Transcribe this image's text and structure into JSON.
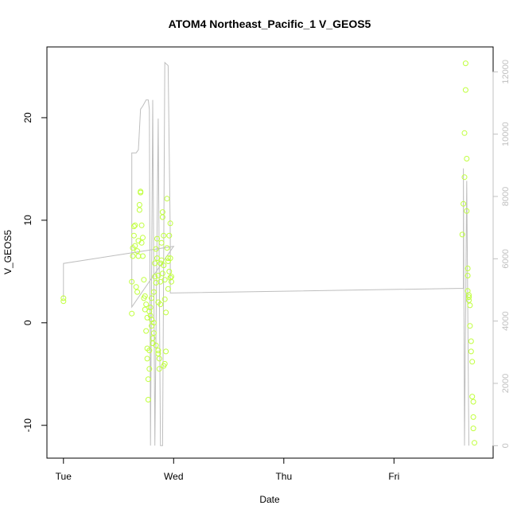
{
  "chart_data": {
    "type": "scatter",
    "title": "ATOM4 Northeast_Pacific_1 V_GEOS5",
    "xlabel": "Date",
    "ylabel": "V_GEOS5",
    "x_ticks": [
      {
        "label": "Tue",
        "value": 0
      },
      {
        "label": "Wed",
        "value": 1
      },
      {
        "label": "Thu",
        "value": 2
      },
      {
        "label": "Fri",
        "value": 3
      }
    ],
    "xlim": [
      -0.15,
      3.9
    ],
    "ylim": [
      -13.2,
      26.9
    ],
    "y_ticks": [
      -10,
      0,
      10,
      20
    ],
    "y2_ticks": [
      0,
      2000,
      4000,
      6000,
      8000,
      10000,
      12000
    ],
    "y2lim": [
      -400,
      12800
    ],
    "grid": false,
    "colors": {
      "points": "#c0ff3e",
      "line": "#bebebe",
      "axis": "#000000",
      "right_axis": "#c0c0c0"
    },
    "series": [
      {
        "values": [
          [
            0.0,
            2.4
          ],
          [
            0.0,
            2.1
          ],
          [
            0.62,
            0.9
          ],
          [
            0.62,
            4.0
          ],
          [
            0.63,
            6.5
          ],
          [
            0.63,
            7.3
          ],
          [
            0.64,
            8.5
          ],
          [
            0.64,
            9.4
          ],
          [
            0.65,
            9.5
          ],
          [
            0.65,
            7.5
          ],
          [
            0.66,
            3.5
          ],
          [
            0.67,
            3.0
          ],
          [
            0.67,
            7.0
          ],
          [
            0.68,
            6.5
          ],
          [
            0.68,
            8.0
          ],
          [
            0.69,
            11.5
          ],
          [
            0.69,
            11.0
          ],
          [
            0.7,
            12.8
          ],
          [
            0.7,
            12.7
          ],
          [
            0.71,
            9.5
          ],
          [
            0.71,
            7.8
          ],
          [
            0.72,
            6.5
          ],
          [
            0.72,
            8.3
          ],
          [
            0.73,
            4.2
          ],
          [
            0.73,
            2.4
          ],
          [
            0.74,
            2.6
          ],
          [
            0.75,
            1.8
          ],
          [
            0.75,
            -0.8
          ],
          [
            0.76,
            -2.5
          ],
          [
            0.76,
            -3.5
          ],
          [
            0.77,
            -5.5
          ],
          [
            0.77,
            -7.5
          ],
          [
            0.78,
            -4.5
          ],
          [
            0.78,
            -2.7
          ],
          [
            0.79,
            0.7
          ],
          [
            0.79,
            1.5
          ],
          [
            0.8,
            2.4
          ],
          [
            0.8,
            -0.3
          ],
          [
            0.81,
            -1.5
          ],
          [
            0.81,
            -2.0
          ],
          [
            0.82,
            0.0
          ],
          [
            0.82,
            3.0
          ],
          [
            0.83,
            5.8
          ],
          [
            0.83,
            4.5
          ],
          [
            0.84,
            3.9
          ],
          [
            0.84,
            7.2
          ],
          [
            0.85,
            8.2
          ],
          [
            0.85,
            6.3
          ],
          [
            0.86,
            2.0
          ],
          [
            0.86,
            -3.0
          ],
          [
            0.87,
            -4.5
          ],
          [
            0.87,
            -3.5
          ],
          [
            0.88,
            1.8
          ],
          [
            0.88,
            4.0
          ],
          [
            0.89,
            6.1
          ],
          [
            0.89,
            7.8
          ],
          [
            0.9,
            10.8
          ],
          [
            0.9,
            10.3
          ],
          [
            0.91,
            8.5
          ],
          [
            0.91,
            5.6
          ],
          [
            0.92,
            4.2
          ],
          [
            0.92,
            2.3
          ],
          [
            0.93,
            1.0
          ],
          [
            0.93,
            -2.8
          ],
          [
            0.94,
            12.1
          ],
          [
            0.94,
            7.3
          ],
          [
            0.95,
            6.3
          ],
          [
            0.95,
            6.0
          ],
          [
            0.96,
            5.0
          ],
          [
            0.96,
            8.5
          ],
          [
            0.97,
            9.7
          ],
          [
            0.97,
            6.3
          ],
          [
            0.98,
            4.5
          ],
          [
            0.98,
            4.0
          ],
          [
            0.92,
            -4.0
          ],
          [
            0.91,
            -4.2
          ],
          [
            0.86,
            -2.7
          ],
          [
            0.84,
            -2.2
          ],
          [
            0.82,
            -1.0
          ],
          [
            0.8,
            0.3
          ],
          [
            0.78,
            1.1
          ],
          [
            0.76,
            0.5
          ],
          [
            0.9,
            4.8
          ],
          [
            0.88,
            5.8
          ],
          [
            0.95,
            3.3
          ],
          [
            0.97,
            4.4
          ],
          [
            0.86,
            4.6
          ],
          [
            0.74,
            1.3
          ],
          [
            3.62,
            8.6
          ],
          [
            3.63,
            11.6
          ],
          [
            3.64,
            14.2
          ],
          [
            3.64,
            18.5
          ],
          [
            3.65,
            22.7
          ],
          [
            3.65,
            25.3
          ],
          [
            3.66,
            16.0
          ],
          [
            3.66,
            10.9
          ],
          [
            3.67,
            5.3
          ],
          [
            3.67,
            4.6
          ],
          [
            3.67,
            3.1
          ],
          [
            3.68,
            2.7
          ],
          [
            3.68,
            2.5
          ],
          [
            3.68,
            2.2
          ],
          [
            3.69,
            1.7
          ],
          [
            3.69,
            -0.3
          ],
          [
            3.7,
            -1.8
          ],
          [
            3.7,
            -2.8
          ],
          [
            3.71,
            -3.8
          ],
          [
            3.71,
            -7.2
          ],
          [
            3.72,
            -7.7
          ],
          [
            3.72,
            -9.2
          ],
          [
            3.72,
            -10.3
          ],
          [
            3.73,
            -11.7
          ]
        ]
      },
      {
        "axis": "right",
        "values": [
          [
            0.0,
            4750
          ],
          [
            0.0,
            5850
          ],
          [
            1.0,
            6400
          ],
          [
            0.62,
            4450
          ],
          [
            0.62,
            9400
          ],
          [
            0.66,
            9400
          ],
          [
            0.68,
            9500
          ],
          [
            0.7,
            10800
          ],
          [
            0.72,
            10900
          ],
          [
            0.75,
            11100
          ],
          [
            0.77,
            11100
          ],
          [
            0.78,
            10800
          ],
          [
            0.79,
            0.0
          ],
          [
            0.81,
            11100
          ],
          [
            0.83,
            0.0
          ],
          [
            0.86,
            10500
          ],
          [
            0.88,
            0.0
          ],
          [
            0.9,
            0.0
          ],
          [
            0.92,
            12300
          ],
          [
            0.95,
            12200
          ],
          [
            0.97,
            6700
          ],
          [
            0.97,
            4900
          ],
          [
            3.63,
            5050
          ],
          [
            3.63,
            8900
          ],
          [
            3.64,
            0.0
          ],
          [
            3.66,
            8500
          ],
          [
            3.68,
            0.0
          ]
        ]
      }
    ]
  }
}
